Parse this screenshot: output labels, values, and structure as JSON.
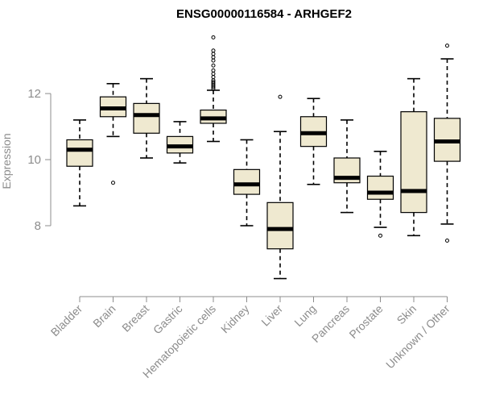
{
  "chart_data": {
    "type": "box",
    "title": "ENSG00000116584 - ARHGEF2",
    "xlabel": "",
    "ylabel": "Expression",
    "ylim": [
      6.0,
      14.1
    ],
    "yticks": [
      8,
      10,
      12
    ],
    "box_fill": "#efe9d0",
    "box_stroke": "#000000",
    "axis_color": "#8c8c8c",
    "categories": [
      "Bladder",
      "Brain",
      "Breast",
      "Gastric",
      "Hematopoietic cells",
      "Kidney",
      "Liver",
      "Lung",
      "Pancreas",
      "Prostate",
      "Skin",
      "Unknown / Other"
    ],
    "series": [
      {
        "name": "Bladder",
        "whisker_low": 8.6,
        "q1": 9.8,
        "median": 10.3,
        "q3": 10.6,
        "whisker_high": 11.2,
        "outliers": []
      },
      {
        "name": "Brain",
        "whisker_low": 10.7,
        "q1": 11.3,
        "median": 11.55,
        "q3": 11.9,
        "whisker_high": 12.3,
        "outliers": [
          9.3
        ]
      },
      {
        "name": "Breast",
        "whisker_low": 10.05,
        "q1": 10.8,
        "median": 11.35,
        "q3": 11.7,
        "whisker_high": 12.45,
        "outliers": []
      },
      {
        "name": "Gastric",
        "whisker_low": 9.9,
        "q1": 10.2,
        "median": 10.4,
        "q3": 10.7,
        "whisker_high": 11.15,
        "outliers": []
      },
      {
        "name": "Hematopoietic cells",
        "whisker_low": 10.55,
        "q1": 11.1,
        "median": 11.25,
        "q3": 11.5,
        "whisker_high": 12.1,
        "outliers": [
          12.15,
          12.2,
          12.25,
          12.3,
          12.35,
          12.4,
          12.5,
          12.6,
          12.7,
          12.85,
          13.0,
          13.1,
          13.2,
          13.3,
          13.7
        ]
      },
      {
        "name": "Kidney",
        "whisker_low": 8.0,
        "q1": 8.95,
        "median": 9.25,
        "q3": 9.7,
        "whisker_high": 10.6,
        "outliers": []
      },
      {
        "name": "Liver",
        "whisker_low": 6.4,
        "q1": 7.3,
        "median": 7.9,
        "q3": 8.7,
        "whisker_high": 10.85,
        "outliers": [
          11.9
        ]
      },
      {
        "name": "Lung",
        "whisker_low": 9.25,
        "q1": 10.4,
        "median": 10.8,
        "q3": 11.3,
        "whisker_high": 11.85,
        "outliers": []
      },
      {
        "name": "Pancreas",
        "whisker_low": 8.4,
        "q1": 9.3,
        "median": 9.45,
        "q3": 10.05,
        "whisker_high": 11.2,
        "outliers": []
      },
      {
        "name": "Prostate",
        "whisker_low": 7.95,
        "q1": 8.8,
        "median": 9.0,
        "q3": 9.5,
        "whisker_high": 10.25,
        "outliers": [
          7.7
        ]
      },
      {
        "name": "Skin",
        "whisker_low": 7.7,
        "q1": 8.4,
        "median": 9.05,
        "q3": 11.45,
        "whisker_high": 12.45,
        "outliers": []
      },
      {
        "name": "Unknown / Other",
        "whisker_low": 8.05,
        "q1": 9.95,
        "median": 10.55,
        "q3": 11.25,
        "whisker_high": 13.05,
        "outliers": [
          7.55,
          13.45
        ]
      }
    ]
  }
}
